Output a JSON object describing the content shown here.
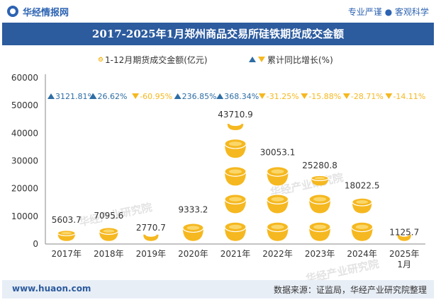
{
  "header": {
    "logo_text": "华经情报网",
    "tagline": "专业严谨 ● 客观科学"
  },
  "footer": {
    "website": "www.huaon.com",
    "source": "数据来源：证监局，华经产业研究院整理"
  },
  "watermark": "华经产业研究院",
  "colors": {
    "title_bg": "#2c5b9e",
    "bar_gold": "#f5b820",
    "up_arrow": "#2e6da4",
    "down_arrow": "#f5b820"
  },
  "chart_data": {
    "type": "bar",
    "title": "2017-2025年1月郑州商品交易所硅铁期货成交金额",
    "categories": [
      "2017年",
      "2018年",
      "2019年",
      "2020年",
      "2021年",
      "2022年",
      "2023年",
      "2024年",
      "2025年1月"
    ],
    "series": [
      {
        "name": "1-12月期货成交金额(亿元)",
        "values": [
          5603.7,
          7095.6,
          2770.7,
          9333.2,
          43710.9,
          30053.1,
          25280.8,
          18022.5,
          1125.7
        ]
      },
      {
        "name": "累计同比增长(%)",
        "values": [
          3121.81,
          26.62,
          -60.95,
          236.85,
          368.34,
          -31.25,
          -15.88,
          -28.71,
          -14.11
        ],
        "labels": [
          "3121.81%",
          "26.62%",
          "-60.95%",
          "236.85%",
          "368.34%",
          "-31.25%",
          "-15.88%",
          "-28.71%",
          "-14.11%"
        ]
      }
    ],
    "y_ticks": [
      "0",
      "10000",
      "20000",
      "30000",
      "40000",
      "50000",
      "60000"
    ],
    "ylim": [
      0,
      60000
    ],
    "legend_position": "top-center"
  }
}
